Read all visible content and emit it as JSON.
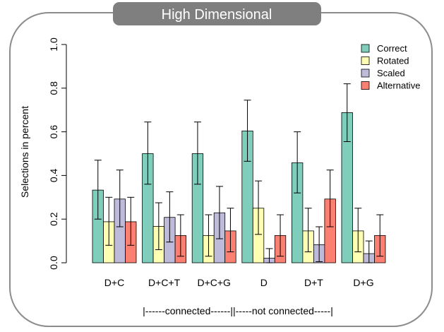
{
  "title": "High Dimensional",
  "chart_data": {
    "type": "bar",
    "categories": [
      "D+C",
      "D+C+T",
      "D+C+G",
      "D",
      "D+T",
      "D+G"
    ],
    "series": [
      {
        "name": "Correct",
        "color": "#7fcdbb",
        "values": [
          0.333,
          0.5,
          0.5,
          0.604,
          0.458,
          0.688
        ],
        "err_low": [
          0.2,
          0.36,
          0.36,
          0.465,
          0.32,
          0.555
        ],
        "err_high": [
          0.47,
          0.645,
          0.645,
          0.745,
          0.6,
          0.82
        ]
      },
      {
        "name": "Rotated",
        "color": "#ffffb3",
        "values": [
          0.188,
          0.167,
          0.125,
          0.25,
          0.146,
          0.146
        ],
        "err_low": [
          0.08,
          0.06,
          0.03,
          0.13,
          0.05,
          0.05
        ],
        "err_high": [
          0.3,
          0.275,
          0.22,
          0.375,
          0.25,
          0.25
        ]
      },
      {
        "name": "Scaled",
        "color": "#bebada",
        "values": [
          0.292,
          0.208,
          0.229,
          0.021,
          0.083,
          0.042
        ],
        "err_low": [
          0.165,
          0.095,
          0.11,
          0.0,
          0.005,
          0.0
        ],
        "err_high": [
          0.425,
          0.325,
          0.35,
          0.065,
          0.165,
          0.1
        ]
      },
      {
        "name": "Alternative",
        "color": "#fb8072",
        "values": [
          0.188,
          0.125,
          0.146,
          0.125,
          0.292,
          0.125
        ],
        "err_low": [
          0.08,
          0.03,
          0.05,
          0.03,
          0.165,
          0.03
        ],
        "err_high": [
          0.3,
          0.22,
          0.25,
          0.22,
          0.425,
          0.22
        ]
      }
    ],
    "ylabel": "Selections in percent",
    "xlabel": "",
    "ylim": [
      0,
      1
    ],
    "yticks": [
      "0.0",
      "0.2",
      "0.4",
      "0.6",
      "0.8",
      "1.0"
    ],
    "ytick_values": [
      0,
      0.2,
      0.4,
      0.6,
      0.8,
      1.0
    ],
    "grid": false,
    "legend_position": "top-right",
    "grouping_caption": "|------connected------||-----not connected-----|"
  }
}
